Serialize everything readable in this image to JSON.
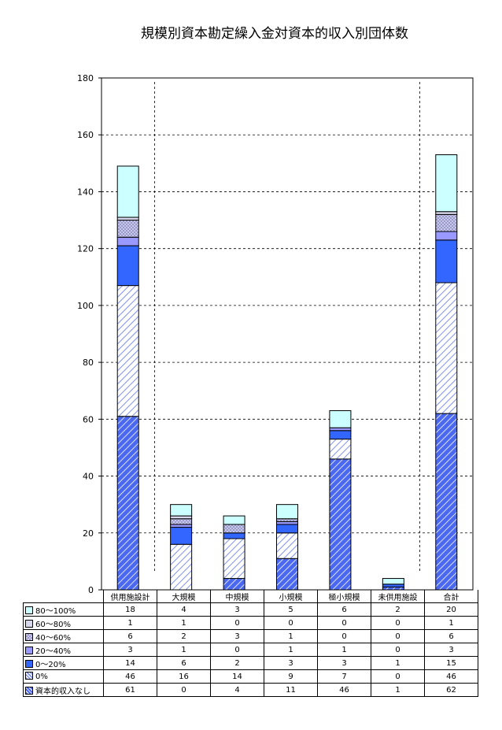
{
  "chart_data": {
    "type": "bar",
    "stacked": true,
    "title": "規模別資本勘定繰入金対資本的収入別団体数",
    "categories": [
      "供用施設計",
      "大規模",
      "中規模",
      "小規模",
      "極小規模",
      "未供用施設",
      "合計"
    ],
    "ylim": [
      0,
      180
    ],
    "yticks": [
      0,
      20,
      40,
      60,
      80,
      100,
      120,
      140,
      160,
      180
    ],
    "grid": true,
    "legend": "data-table",
    "series": [
      {
        "name": "資本的収入なし",
        "values": [
          61,
          0,
          4,
          11,
          46,
          1,
          62
        ],
        "color": "#4B68F0",
        "pattern": "diag-dense"
      },
      {
        "name": "0%",
        "values": [
          46,
          16,
          14,
          9,
          7,
          0,
          46
        ],
        "color": "#8090F0",
        "pattern": "diag-sparse"
      },
      {
        "name": "0～20%",
        "values": [
          14,
          6,
          2,
          3,
          3,
          1,
          15
        ],
        "color": "#3366FF",
        "pattern": "solid"
      },
      {
        "name": "20～40%",
        "values": [
          3,
          1,
          0,
          1,
          1,
          0,
          3
        ],
        "color": "#9999FF",
        "pattern": "solid"
      },
      {
        "name": "40～60%",
        "values": [
          6,
          2,
          3,
          1,
          0,
          0,
          6
        ],
        "color": "#B4B4DC",
        "pattern": "grid"
      },
      {
        "name": "60～80%",
        "values": [
          1,
          1,
          0,
          0,
          0,
          0,
          1
        ],
        "color": "#D8D8EC",
        "pattern": "solid"
      },
      {
        "name": "80～100%",
        "values": [
          18,
          4,
          3,
          5,
          6,
          2,
          20
        ],
        "color": "#CCFFFF",
        "pattern": "solid"
      }
    ]
  }
}
